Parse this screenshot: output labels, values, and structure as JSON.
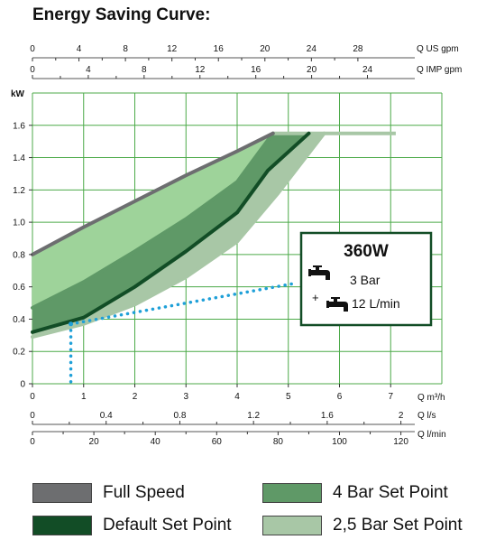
{
  "chart_data": {
    "type": "line",
    "title": "Energy Saving Curve:",
    "ylabel": "kW",
    "ylim": [
      0,
      1.8
    ],
    "yticks": [
      "0",
      "0.2",
      "0.4",
      "0.6",
      "0.8",
      "1.0",
      "1.2",
      "1.4",
      "1.6"
    ],
    "x_axes": {
      "us_gpm": {
        "label": "Q US gpm",
        "ticks": [
          "0",
          "4",
          "8",
          "12",
          "16",
          "20",
          "24",
          "28"
        ]
      },
      "imp_gpm": {
        "label": "Q IMP gpm",
        "ticks": [
          "0",
          "4",
          "8",
          "12",
          "16",
          "20",
          "24"
        ]
      },
      "m3h": {
        "label": "Q m³/h",
        "ticks": [
          "0",
          "1",
          "2",
          "3",
          "4",
          "5",
          "6",
          "7"
        ],
        "range": [
          0,
          8
        ]
      },
      "ls": {
        "label": "Q l/s",
        "ticks": [
          "0",
          "0.4",
          "0.8",
          "1.2",
          "1.6",
          "2"
        ]
      },
      "lmin": {
        "label": "Q l/min",
        "ticks": [
          "0",
          "20",
          "40",
          "60",
          "80",
          "100",
          "120"
        ]
      }
    },
    "series": [
      {
        "name": "Full Speed",
        "color": "#6d6e70",
        "points": [
          [
            0,
            0.8
          ],
          [
            1,
            0.97
          ],
          [
            2,
            1.13
          ],
          [
            3,
            1.29
          ],
          [
            4,
            1.44
          ],
          [
            4.7,
            1.55
          ]
        ]
      },
      {
        "name": "4 Bar Set Point",
        "color": "#5f9967",
        "points": [
          [
            0,
            0.47
          ],
          [
            1,
            0.63
          ],
          [
            2,
            0.82
          ],
          [
            3,
            1.02
          ],
          [
            4,
            1.25
          ],
          [
            4.7,
            1.55
          ]
        ]
      },
      {
        "name": "Default Set Point",
        "color": "#124d26",
        "points": [
          [
            0,
            0.32
          ],
          [
            1,
            0.41
          ],
          [
            2,
            0.6
          ],
          [
            3,
            0.82
          ],
          [
            4,
            1.06
          ],
          [
            4.6,
            1.32
          ],
          [
            5.4,
            1.55
          ]
        ]
      },
      {
        "name": "2,5 Bar Set Point",
        "color": "#a8c7a6",
        "points": [
          [
            0,
            0.29
          ],
          [
            1,
            0.37
          ],
          [
            2,
            0.49
          ],
          [
            3,
            0.66
          ],
          [
            4,
            0.88
          ],
          [
            4.8,
            1.18
          ],
          [
            5.7,
            1.55
          ]
        ]
      }
    ],
    "flat_line": {
      "x": [
        4.7,
        7.1
      ],
      "y": 1.55
    },
    "annotation": {
      "power": "360W",
      "pressure": "3 Bar",
      "flow": "12 L/min",
      "plus": "+",
      "point": [
        0.75,
        0.37
      ],
      "leader_end": [
        5.1,
        0.62
      ]
    },
    "legend": [
      {
        "label": "Full Speed",
        "color": "#6d6e70"
      },
      {
        "label": "4 Bar Set Point",
        "color": "#5f9967"
      },
      {
        "label": "Default Set Point",
        "color": "#124d26"
      },
      {
        "label": "2,5 Bar Set Point",
        "color": "#a8c7a6"
      }
    ]
  }
}
